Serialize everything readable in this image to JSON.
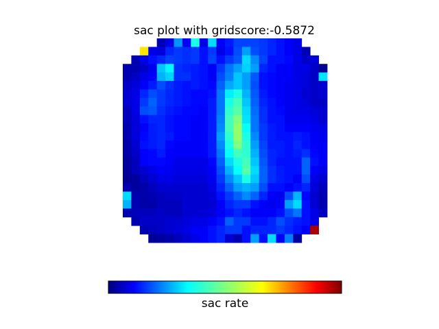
{
  "chart_data": {
    "type": "heatmap",
    "title": "sac plot with gridscore:-0.5872",
    "colormap": "jet",
    "colorbar_label": "sac rate",
    "colorbar_ticks": "none",
    "axes": "hidden",
    "value_range": [
      0,
      1
    ],
    "grid_size": [
      24,
      24
    ],
    "mask": "circular",
    "values": [
      [
        null,
        null,
        null,
        null,
        0.05,
        0.1,
        0.27,
        0.12,
        0.4,
        0.1,
        0.34,
        0.12,
        0.15,
        0.19,
        0.19,
        0.19,
        0.18,
        0.16,
        0.14,
        0.12,
        0.1,
        null,
        null,
        null
      ],
      [
        null,
        null,
        0.65,
        0.1,
        0.09,
        0.16,
        0.18,
        0.17,
        0.18,
        0.14,
        0.18,
        0.1,
        0.14,
        0.2,
        0.28,
        0.2,
        0.18,
        0.16,
        0.14,
        0.12,
        0.1,
        0.05,
        null,
        null
      ],
      [
        null,
        0.05,
        0.1,
        0.14,
        0.16,
        0.19,
        0.18,
        0.17,
        0.18,
        0.14,
        0.19,
        0.14,
        0.18,
        0.21,
        0.34,
        0.26,
        0.19,
        0.14,
        0.14,
        0.13,
        0.1,
        0.07,
        0.09,
        null
      ],
      [
        0.05,
        0.05,
        0.07,
        0.11,
        0.32,
        0.37,
        0.17,
        0.16,
        0.15,
        0.14,
        0.12,
        0.18,
        0.24,
        0.28,
        0.33,
        0.28,
        0.16,
        0.14,
        0.12,
        0.12,
        0.1,
        0.1,
        0.07,
        0.02
      ],
      [
        0.05,
        0.07,
        0.1,
        0.12,
        0.3,
        0.33,
        0.17,
        0.17,
        0.15,
        0.14,
        0.12,
        0.2,
        0.25,
        0.32,
        0.28,
        0.21,
        0.14,
        0.13,
        0.12,
        0.12,
        0.1,
        0.09,
        0.07,
        0.35
      ],
      [
        0.07,
        0.09,
        0.12,
        0.15,
        0.2,
        0.17,
        0.15,
        0.14,
        0.15,
        0.14,
        0.13,
        0.22,
        0.29,
        0.32,
        0.28,
        0.2,
        0.14,
        0.13,
        0.12,
        0.11,
        0.1,
        0.09,
        0.07,
        0.08
      ],
      [
        0.08,
        0.1,
        0.16,
        0.2,
        0.18,
        0.16,
        0.15,
        0.14,
        0.13,
        0.13,
        0.14,
        0.24,
        0.36,
        0.4,
        0.3,
        0.21,
        0.15,
        0.13,
        0.12,
        0.11,
        0.1,
        0.08,
        0.07,
        0.08
      ],
      [
        0.08,
        0.1,
        0.18,
        0.22,
        0.18,
        0.16,
        0.15,
        0.14,
        0.13,
        0.13,
        0.15,
        0.24,
        0.4,
        0.44,
        0.32,
        0.22,
        0.16,
        0.14,
        0.12,
        0.11,
        0.1,
        0.09,
        0.07,
        0.07
      ],
      [
        0.06,
        0.1,
        0.2,
        0.21,
        0.17,
        0.15,
        0.14,
        0.13,
        0.13,
        0.12,
        0.15,
        0.24,
        0.42,
        0.46,
        0.34,
        0.23,
        0.17,
        0.14,
        0.13,
        0.11,
        0.1,
        0.1,
        0.09,
        0.08
      ],
      [
        0.06,
        0.09,
        0.14,
        0.16,
        0.16,
        0.14,
        0.13,
        0.13,
        0.12,
        0.12,
        0.15,
        0.25,
        0.44,
        0.5,
        0.35,
        0.24,
        0.17,
        0.14,
        0.14,
        0.11,
        0.11,
        0.11,
        0.1,
        0.08
      ],
      [
        0.05,
        0.09,
        0.12,
        0.15,
        0.16,
        0.14,
        0.13,
        0.13,
        0.12,
        0.12,
        0.15,
        0.26,
        0.44,
        0.52,
        0.38,
        0.24,
        0.18,
        0.15,
        0.14,
        0.12,
        0.12,
        0.12,
        0.11,
        0.1
      ],
      [
        0.05,
        0.09,
        0.13,
        0.15,
        0.16,
        0.15,
        0.13,
        0.13,
        0.12,
        0.12,
        0.15,
        0.28,
        0.42,
        0.52,
        0.4,
        0.26,
        0.18,
        0.15,
        0.14,
        0.14,
        0.15,
        0.14,
        0.12,
        0.11
      ],
      [
        0.04,
        0.08,
        0.14,
        0.15,
        0.16,
        0.13,
        0.12,
        0.12,
        0.12,
        0.12,
        0.15,
        0.26,
        0.4,
        0.5,
        0.42,
        0.28,
        0.19,
        0.15,
        0.15,
        0.14,
        0.16,
        0.14,
        0.12,
        0.12
      ],
      [
        0.04,
        0.07,
        0.12,
        0.13,
        0.15,
        0.12,
        0.12,
        0.12,
        0.12,
        0.12,
        0.15,
        0.24,
        0.38,
        0.44,
        0.42,
        0.3,
        0.2,
        0.16,
        0.15,
        0.14,
        0.15,
        0.17,
        0.13,
        0.12
      ],
      [
        0.03,
        0.06,
        0.12,
        0.13,
        0.13,
        0.12,
        0.1,
        0.1,
        0.1,
        0.1,
        0.13,
        0.22,
        0.34,
        0.4,
        0.44,
        0.32,
        0.21,
        0.16,
        0.14,
        0.14,
        0.14,
        0.22,
        0.14,
        0.12
      ],
      [
        0.03,
        0.06,
        0.08,
        0.1,
        0.12,
        0.11,
        0.1,
        0.1,
        0.1,
        0.1,
        0.12,
        0.2,
        0.3,
        0.38,
        0.46,
        0.34,
        0.22,
        0.17,
        0.15,
        0.14,
        0.14,
        0.22,
        0.12,
        0.1
      ],
      [
        0.02,
        0.03,
        0.06,
        0.08,
        0.1,
        0.1,
        0.09,
        0.09,
        0.09,
        0.09,
        0.11,
        0.18,
        0.26,
        0.32,
        0.4,
        0.32,
        0.22,
        0.17,
        0.15,
        0.14,
        0.12,
        0.2,
        0.1,
        0.08
      ],
      [
        0.05,
        0.03,
        0.04,
        0.06,
        0.08,
        0.08,
        0.08,
        0.08,
        0.08,
        0.08,
        0.1,
        0.16,
        0.22,
        0.28,
        0.3,
        0.28,
        0.2,
        0.14,
        0.14,
        0.12,
        0.14,
        0.16,
        0.09,
        0.06
      ],
      [
        0.34,
        0.05,
        0.04,
        0.05,
        0.06,
        0.07,
        0.07,
        0.08,
        0.08,
        0.08,
        0.09,
        0.14,
        0.18,
        0.22,
        0.26,
        0.22,
        0.16,
        0.12,
        0.11,
        0.2,
        0.3,
        0.13,
        0.08,
        0.05
      ],
      [
        0.3,
        0.05,
        0.04,
        0.04,
        0.06,
        0.06,
        0.06,
        0.08,
        0.08,
        0.08,
        0.08,
        0.12,
        0.16,
        0.18,
        0.18,
        0.14,
        0.12,
        0.11,
        0.12,
        0.28,
        0.34,
        0.14,
        0.08,
        0.05
      ],
      [
        0.05,
        0.06,
        0.06,
        0.06,
        0.07,
        0.06,
        0.06,
        0.08,
        0.08,
        0.08,
        0.09,
        0.12,
        0.14,
        0.16,
        0.14,
        0.12,
        0.12,
        0.12,
        0.14,
        0.2,
        0.24,
        0.14,
        0.1,
        0.06
      ],
      [
        null,
        0.05,
        0.07,
        0.07,
        0.07,
        0.08,
        0.08,
        0.09,
        0.1,
        0.1,
        0.12,
        0.14,
        0.22,
        0.18,
        0.18,
        0.14,
        0.14,
        0.16,
        0.2,
        0.17,
        0.15,
        0.14,
        0.1,
        null
      ],
      [
        null,
        null,
        0.05,
        0.06,
        0.07,
        0.08,
        0.09,
        0.1,
        0.12,
        0.12,
        0.14,
        0.16,
        0.18,
        0.18,
        0.14,
        0.16,
        0.16,
        0.16,
        0.18,
        0.16,
        0.14,
        0.12,
        0.96,
        null
      ],
      [
        null,
        null,
        null,
        0.02,
        0.03,
        0.04,
        0.06,
        0.08,
        0.1,
        0.12,
        0.14,
        0.16,
        0.08,
        0.05,
        0.14,
        0.28,
        0.14,
        0.34,
        0.12,
        0.25,
        0.03,
        null,
        null,
        null
      ]
    ]
  }
}
